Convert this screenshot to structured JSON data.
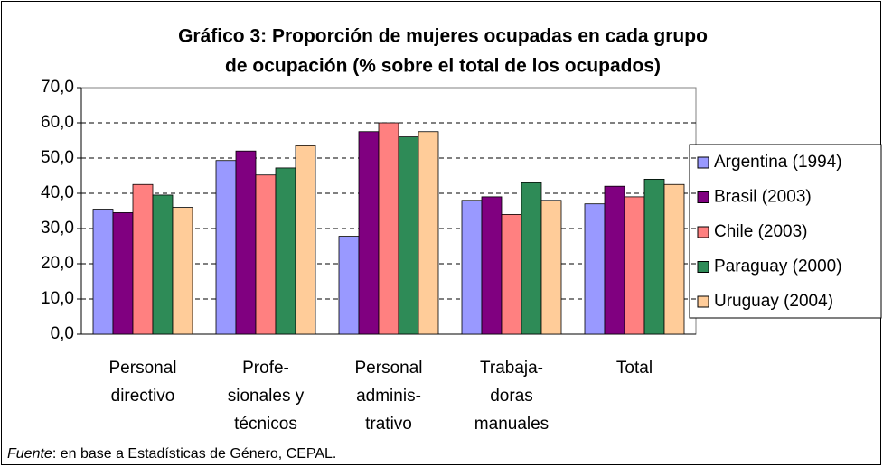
{
  "chart_data": {
    "type": "bar",
    "title": [
      "Gráfico 3: Proporción de mujeres ocupadas en cada grupo",
      "de ocupación (% sobre el total de los ocupados)"
    ],
    "categories": [
      [
        "Personal",
        "directivo"
      ],
      [
        "Profe-",
        "sionales y",
        "técnicos"
      ],
      [
        "Personal",
        "adminis-",
        "trativo"
      ],
      [
        "Trabaja-",
        "doras",
        "manuales"
      ],
      [
        "Total"
      ]
    ],
    "series": [
      {
        "name": "Argentina (1994)",
        "color": "#9999ff",
        "values": [
          35.5,
          49.3,
          27.8,
          38,
          37
        ]
      },
      {
        "name": "Brasil (2003)",
        "color": "#800080",
        "values": [
          34.5,
          52,
          57.5,
          39,
          42
        ]
      },
      {
        "name": "Chile (2003)",
        "color": "#ff8080",
        "values": [
          42.5,
          45.2,
          60,
          34,
          39
        ]
      },
      {
        "name": "Paraguay (2000)",
        "color": "#2e8b57",
        "values": [
          39.5,
          47.2,
          56,
          43,
          44
        ]
      },
      {
        "name": "Uruguay (2004)",
        "color": "#ffcc99",
        "values": [
          36,
          53.5,
          57.5,
          38,
          42.5
        ]
      }
    ],
    "ylim": [
      0,
      70
    ],
    "yticks": [
      {
        "value": 0,
        "label": "0,0"
      },
      {
        "value": 10,
        "label": "10,0"
      },
      {
        "value": 20,
        "label": "20,0"
      },
      {
        "value": 30,
        "label": "30,0"
      },
      {
        "value": 40,
        "label": "40,0"
      },
      {
        "value": 50,
        "label": "50,0"
      },
      {
        "value": 60,
        "label": "60,0"
      },
      {
        "value": 70,
        "label": "70,0"
      }
    ],
    "grid": true,
    "legend": "right",
    "source_label": "Fuente",
    "source_text": ": en base a Estadísticas de Género, CEPAL."
  }
}
